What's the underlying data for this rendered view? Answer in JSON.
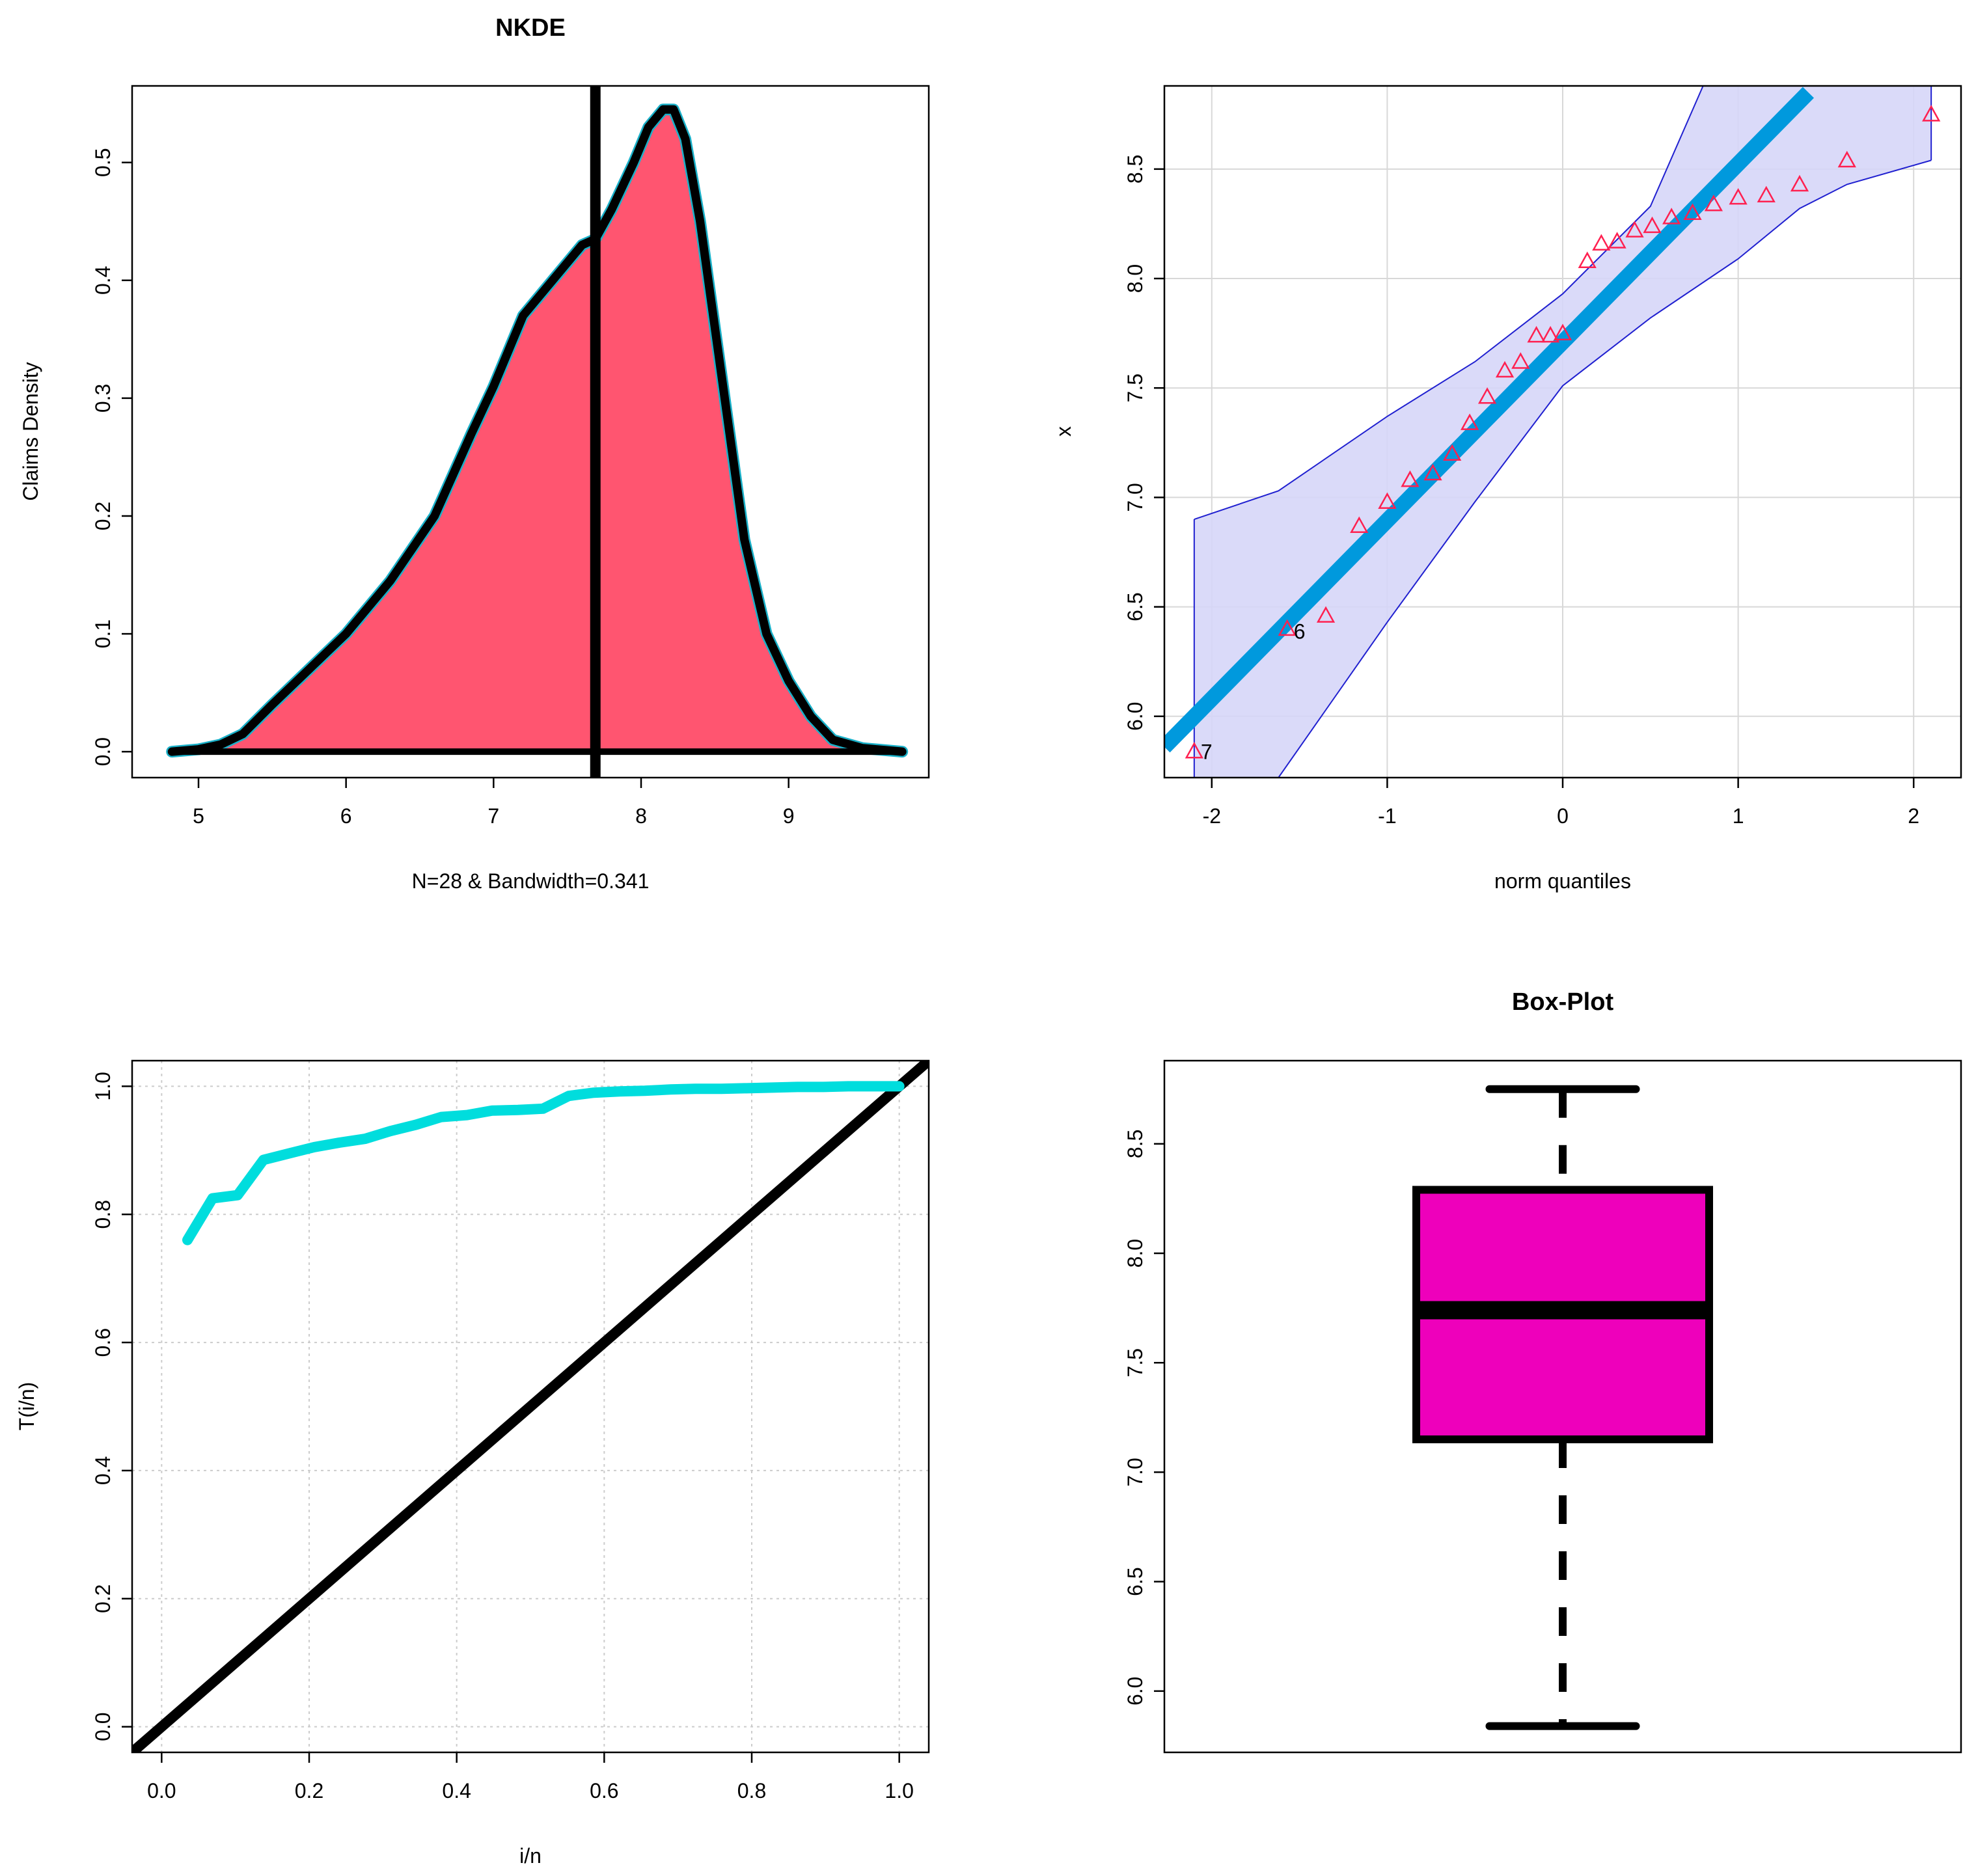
{
  "chart_data": [
    {
      "id": "kde",
      "type": "area",
      "title": "NKDE",
      "xlabel": "N=28 & Bandwidth=0.341",
      "ylabel": "Claims Density",
      "xlim": [
        4.55,
        9.95
      ],
      "ylim": [
        -0.022,
        0.565
      ],
      "xticks": [
        5,
        6,
        7,
        8,
        9
      ],
      "yticks": [
        0.0,
        0.1,
        0.2,
        0.3,
        0.4,
        0.5
      ],
      "ytick_labels": [
        "0.0",
        "0.1",
        "0.2",
        "0.3",
        "0.4",
        "0.5"
      ],
      "fill_color": "#ff5570",
      "outline_color": "#000000",
      "vline_x": 7.69,
      "density": {
        "x": [
          4.82,
          5.0,
          5.15,
          5.3,
          5.5,
          5.75,
          6.0,
          6.3,
          6.6,
          6.85,
          7.0,
          7.2,
          7.4,
          7.6,
          7.69,
          7.8,
          7.95,
          8.05,
          8.15,
          8.22,
          8.3,
          8.4,
          8.5,
          8.6,
          8.7,
          8.85,
          9.0,
          9.15,
          9.3,
          9.5,
          9.77
        ],
        "y": [
          0.0,
          0.002,
          0.006,
          0.015,
          0.04,
          0.07,
          0.1,
          0.145,
          0.2,
          0.27,
          0.31,
          0.37,
          0.4,
          0.43,
          0.435,
          0.46,
          0.5,
          0.53,
          0.545,
          0.545,
          0.52,
          0.45,
          0.36,
          0.27,
          0.18,
          0.1,
          0.06,
          0.03,
          0.01,
          0.003,
          0.0
        ]
      }
    },
    {
      "id": "qq",
      "type": "scatter",
      "title": "",
      "xlabel": "norm quantiles",
      "ylabel": "x",
      "xlim": [
        -2.27,
        2.27
      ],
      "ylim": [
        5.72,
        8.88
      ],
      "xticks": [
        -2,
        -1,
        0,
        1,
        2
      ],
      "yticks": [
        6.0,
        6.5,
        7.0,
        7.5,
        8.0,
        8.5
      ],
      "ytick_labels": [
        "6.0",
        "6.5",
        "7.0",
        "7.5",
        "8.0",
        "8.5"
      ],
      "grid": true,
      "point_color": "#ff2050",
      "line_color": "#0099dd",
      "band_fill": "#d6d6f8",
      "band_edge": "#2020d0",
      "points": {
        "x": [
          -2.1,
          -1.57,
          -1.35,
          -1.16,
          -1.0,
          -0.87,
          -0.74,
          -0.63,
          -0.53,
          -0.43,
          -0.33,
          -0.24,
          -0.15,
          -0.07,
          0.0,
          0.14,
          0.22,
          0.31,
          0.41,
          0.51,
          0.62,
          0.74,
          0.86,
          1.0,
          1.16,
          1.35,
          1.62,
          2.1
        ],
        "y": [
          5.84,
          6.4,
          6.46,
          6.87,
          6.98,
          7.08,
          7.11,
          7.2,
          7.34,
          7.46,
          7.58,
          7.62,
          7.74,
          7.74,
          7.75,
          8.08,
          8.16,
          8.17,
          8.22,
          8.24,
          8.28,
          8.3,
          8.34,
          8.37,
          8.38,
          8.43,
          8.54,
          8.75
        ]
      },
      "reference_line": {
        "x": [
          -2.27,
          1.4
        ],
        "y": [
          5.86,
          8.85
        ]
      },
      "band_upper": {
        "x": [
          -2.1,
          -1.62,
          -1.0,
          -0.5,
          0.0,
          0.5,
          0.8,
          1.35,
          1.62,
          2.1
        ],
        "y": [
          6.9,
          7.03,
          7.37,
          7.62,
          7.93,
          8.33,
          8.88,
          8.88,
          8.88,
          8.88
        ]
      },
      "band_lower": {
        "x": [
          -2.1,
          -1.62,
          -1.0,
          -0.5,
          0.0,
          0.5,
          1.0,
          1.35,
          1.62,
          2.1
        ],
        "y": [
          5.72,
          5.72,
          6.43,
          6.98,
          7.51,
          7.82,
          8.09,
          8.32,
          8.43,
          8.54
        ]
      },
      "labels": [
        {
          "text": "7",
          "x": -2.1,
          "y": 5.84
        },
        {
          "text": "6",
          "x": -1.57,
          "y": 6.39
        }
      ]
    },
    {
      "id": "ttt",
      "type": "line",
      "title": "",
      "xlabel": "i/n",
      "ylabel": "T(i/n)",
      "xlim": [
        -0.04,
        1.04
      ],
      "ylim": [
        -0.04,
        1.04
      ],
      "xticks": [
        0.0,
        0.2,
        0.4,
        0.6,
        0.8,
        1.0
      ],
      "xtick_labels": [
        "0.0",
        "0.2",
        "0.4",
        "0.6",
        "0.8",
        "1.0"
      ],
      "yticks": [
        0.0,
        0.2,
        0.4,
        0.6,
        0.8,
        1.0
      ],
      "ytick_labels": [
        "0.0",
        "0.2",
        "0.4",
        "0.6",
        "0.8",
        "1.0"
      ],
      "grid": true,
      "series": [
        {
          "name": "T(i/n)",
          "color": "#00dddd",
          "x": [
            0.035,
            0.069,
            0.103,
            0.138,
            0.172,
            0.207,
            0.241,
            0.276,
            0.31,
            0.345,
            0.379,
            0.414,
            0.448,
            0.483,
            0.517,
            0.552,
            0.586,
            0.621,
            0.655,
            0.69,
            0.724,
            0.759,
            0.793,
            0.828,
            0.862,
            0.897,
            0.931,
            0.966,
            1.0
          ],
          "y": [
            0.76,
            0.825,
            0.83,
            0.885,
            0.895,
            0.905,
            0.912,
            0.918,
            0.93,
            0.94,
            0.952,
            0.955,
            0.962,
            0.963,
            0.965,
            0.985,
            0.99,
            0.992,
            0.993,
            0.995,
            0.996,
            0.996,
            0.997,
            0.998,
            0.999,
            0.999,
            1.0,
            1.0,
            1.0
          ]
        },
        {
          "name": "diagonal",
          "color": "#000000",
          "x": [
            -0.04,
            1.04
          ],
          "y": [
            -0.04,
            1.04
          ]
        }
      ]
    },
    {
      "id": "box",
      "type": "box",
      "title": "Box-Plot",
      "ylabel": "",
      "ylim": [
        5.72,
        8.88
      ],
      "yticks": [
        6.0,
        6.5,
        7.0,
        7.5,
        8.0,
        8.5
      ],
      "ytick_labels": [
        "6.0",
        "6.5",
        "7.0",
        "7.5",
        "8.0",
        "8.5"
      ],
      "fill_color": "#ee00bb",
      "stats": {
        "min": 5.84,
        "q1": 7.15,
        "median": 7.74,
        "q3": 8.29,
        "max": 8.75
      }
    }
  ]
}
